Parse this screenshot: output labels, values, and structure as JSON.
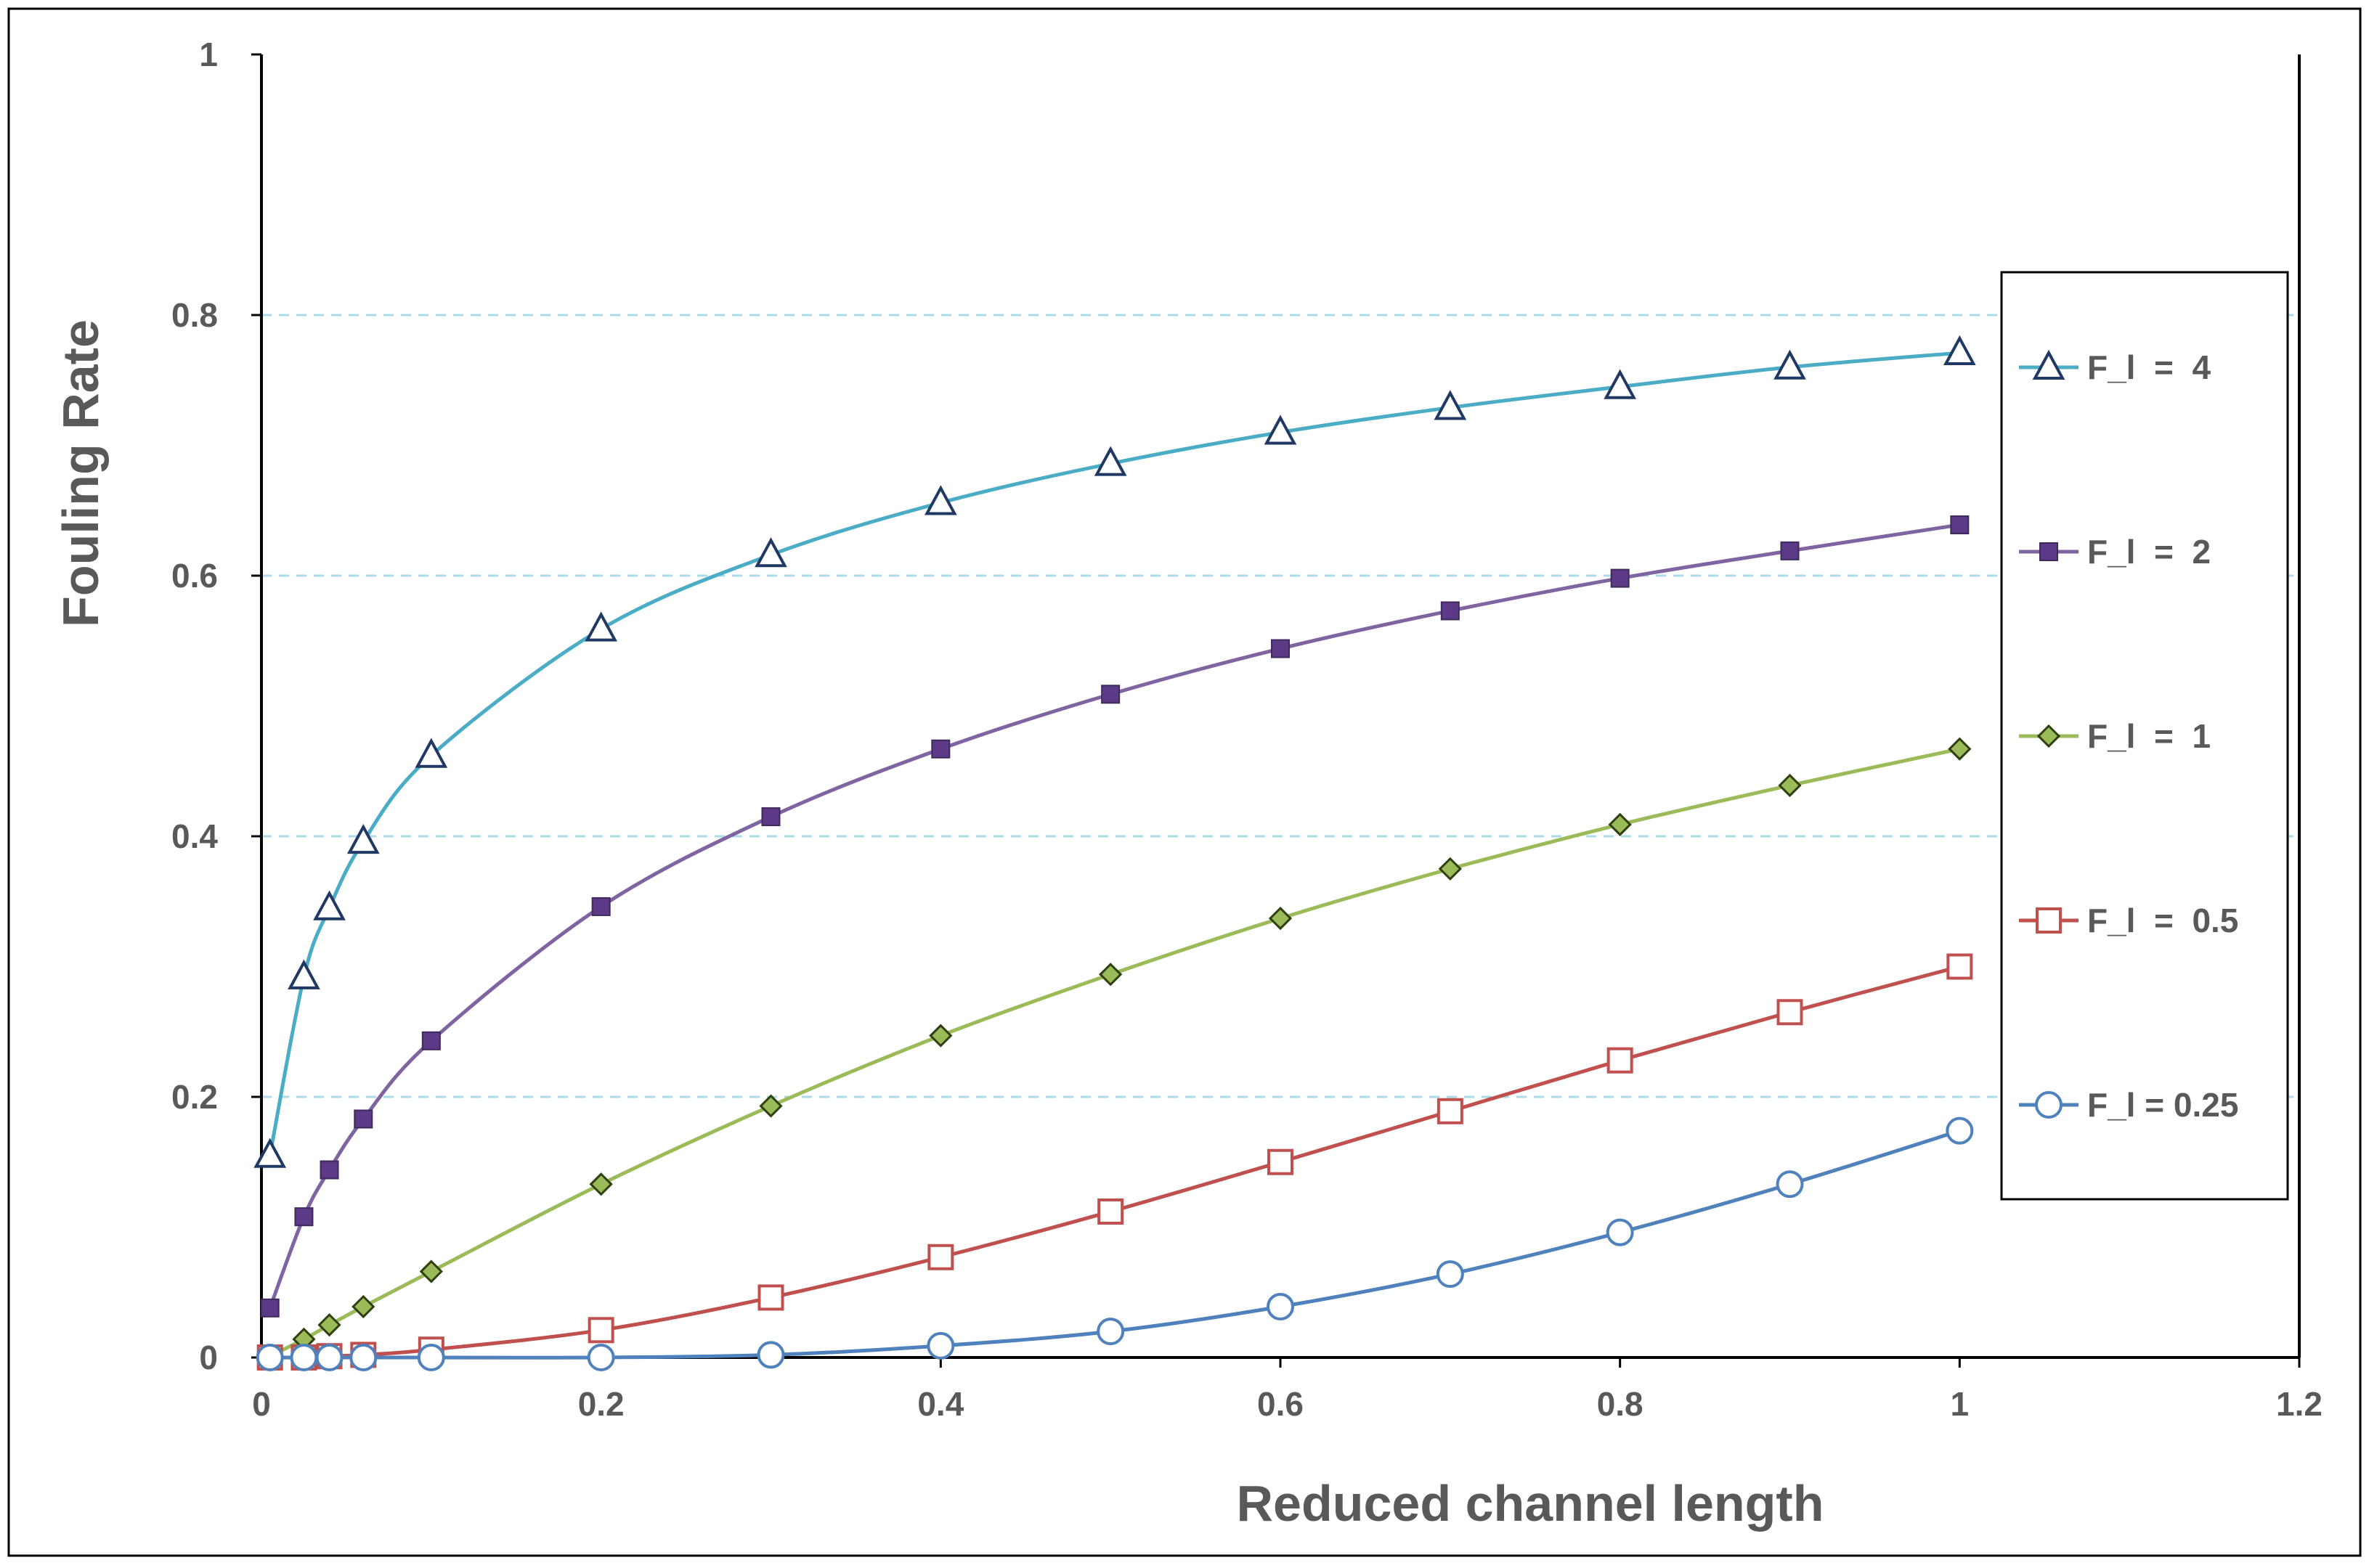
{
  "chart_data": {
    "type": "line",
    "title": "",
    "xlabel": "Reduced channel length",
    "ylabel": "Fouling Rate",
    "xlim": [
      0,
      1.2
    ],
    "ylim": [
      0,
      1
    ],
    "xticks": [
      "0",
      "0.2",
      "0.4",
      "0.6",
      "0.8",
      "1",
      "1.2"
    ],
    "yticks": [
      "0",
      "0.2",
      "0.4",
      "0.6",
      "0.8",
      "1"
    ],
    "xtick_values": [
      0,
      0.2,
      0.4,
      0.6,
      0.8,
      1,
      1.2
    ],
    "ytick_values": [
      0,
      0.2,
      0.4,
      0.6,
      0.8,
      1
    ],
    "grid": "horizontal dashed",
    "legend_position": "right",
    "x": [
      0.005,
      0.025,
      0.04,
      0.06,
      0.1,
      0.2,
      0.3,
      0.4,
      0.5,
      0.6,
      0.7,
      0.8,
      0.9,
      1.0
    ],
    "series": [
      {
        "name": "F_l  =  4",
        "color": "#4BACC6",
        "marker": "triangle-open",
        "marker_color": "#1F3864",
        "values": [
          0.155,
          0.292,
          0.345,
          0.396,
          0.462,
          0.559,
          0.616,
          0.656,
          0.686,
          0.71,
          0.729,
          0.745,
          0.76,
          0.771
        ]
      },
      {
        "name": "F_l  =  2",
        "color": "#8064A2",
        "marker": "square-filled",
        "marker_color": "#5C3A87",
        "values": [
          0.038,
          0.108,
          0.144,
          0.183,
          0.243,
          0.346,
          0.415,
          0.467,
          0.509,
          0.544,
          0.573,
          0.598,
          0.619,
          0.639
        ]
      },
      {
        "name": "F_l  =  1",
        "color": "#9BBB59",
        "marker": "diamond-filled",
        "marker_color": "#6B8E23",
        "values": [
          0.001,
          0.014,
          0.025,
          0.039,
          0.066,
          0.133,
          0.193,
          0.247,
          0.294,
          0.337,
          0.375,
          0.409,
          0.439,
          0.467
        ]
      },
      {
        "name": "F_l  =  0.5",
        "color": "#C0504D",
        "marker": "square-open",
        "marker_color": "#C0504D",
        "values": [
          0.0,
          0.0,
          0.001,
          0.002,
          0.006,
          0.021,
          0.046,
          0.077,
          0.112,
          0.15,
          0.189,
          0.228,
          0.265,
          0.3
        ]
      },
      {
        "name": "F_l = 0.25",
        "color": "#4F81BD",
        "marker": "circle-open",
        "marker_color": "#4F81BD",
        "values": [
          0.0,
          0.0,
          0.0,
          0.0,
          0.0,
          0.0,
          0.002,
          0.009,
          0.02,
          0.039,
          0.064,
          0.096,
          0.133,
          0.174
        ]
      }
    ]
  }
}
